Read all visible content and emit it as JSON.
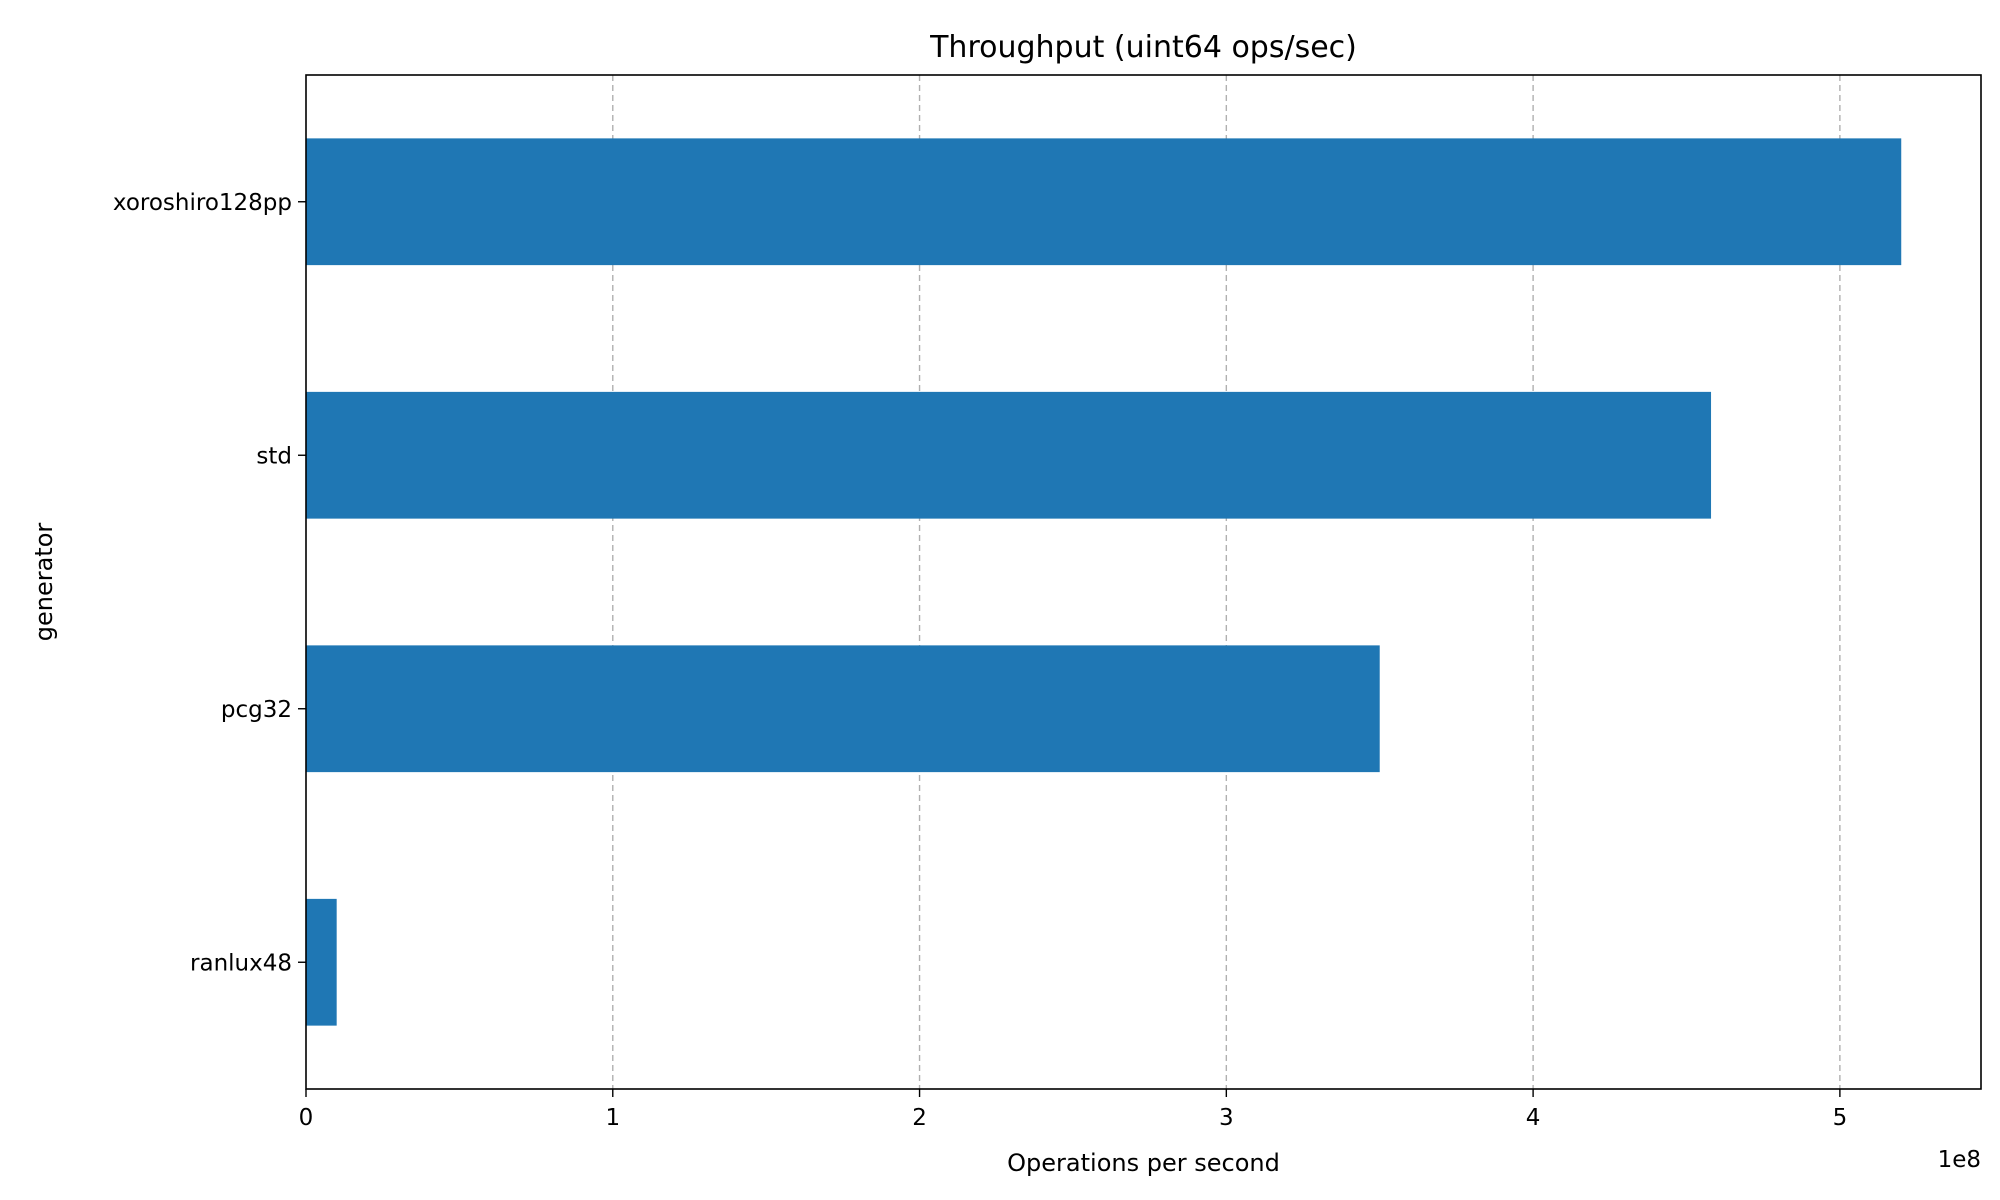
{
  "chart_data": {
    "type": "bar",
    "orientation": "horizontal",
    "title": "Throughput (uint64 ops/sec)",
    "xlabel": "Operations per second",
    "ylabel": "generator",
    "x_offset_label": "1e8",
    "categories": [
      "xoroshiro128pp",
      "std",
      "pcg32",
      "ranlux48"
    ],
    "values": [
      520000000,
      458000000,
      350000000,
      10000000
    ],
    "xlim": [
      0,
      546000000
    ],
    "xticks": [
      0,
      100000000,
      200000000,
      300000000,
      400000000,
      500000000
    ],
    "xtick_labels": [
      "0",
      "1",
      "2",
      "3",
      "4",
      "5"
    ],
    "grid": "x-dashed",
    "legend": "none",
    "bar_color": "#1f77b4"
  }
}
